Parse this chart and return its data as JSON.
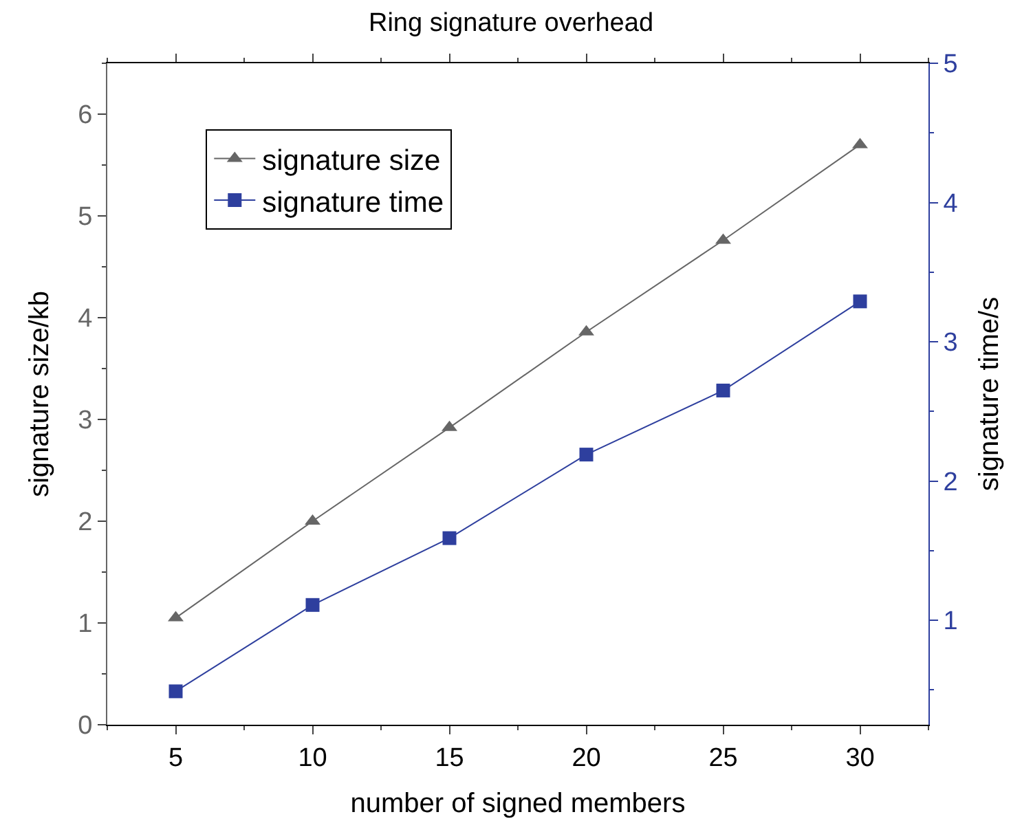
{
  "chart_data": {
    "type": "line",
    "title": "Ring signature overhead",
    "xlabel": "number of signed members",
    "ylabel": "signature size/kb",
    "y2label": "signature time/s",
    "x": [
      5,
      10,
      15,
      20,
      25,
      30
    ],
    "series": [
      {
        "name": "signature size",
        "color": "#666666",
        "marker": "triangle",
        "values": [
          1.05,
          2.0,
          2.92,
          3.86,
          4.76,
          5.7
        ]
      },
      {
        "name": "signature time",
        "color": "#2e3f9e",
        "marker": "square",
        "axis": "y2",
        "values": [
          0.49,
          1.11,
          1.59,
          2.19,
          2.65,
          3.29
        ]
      }
    ],
    "xlim": [
      2.5,
      32.5
    ],
    "xticks": [
      5,
      10,
      15,
      20,
      25,
      30
    ],
    "ylim": [
      0,
      6.5
    ],
    "yticks": [
      0,
      1,
      2,
      3,
      4,
      5,
      6
    ],
    "y2lim": [
      0.25,
      5
    ],
    "y2ticks": [
      1,
      2,
      3,
      4,
      5
    ],
    "legend": "top left",
    "line_style": "solid"
  }
}
